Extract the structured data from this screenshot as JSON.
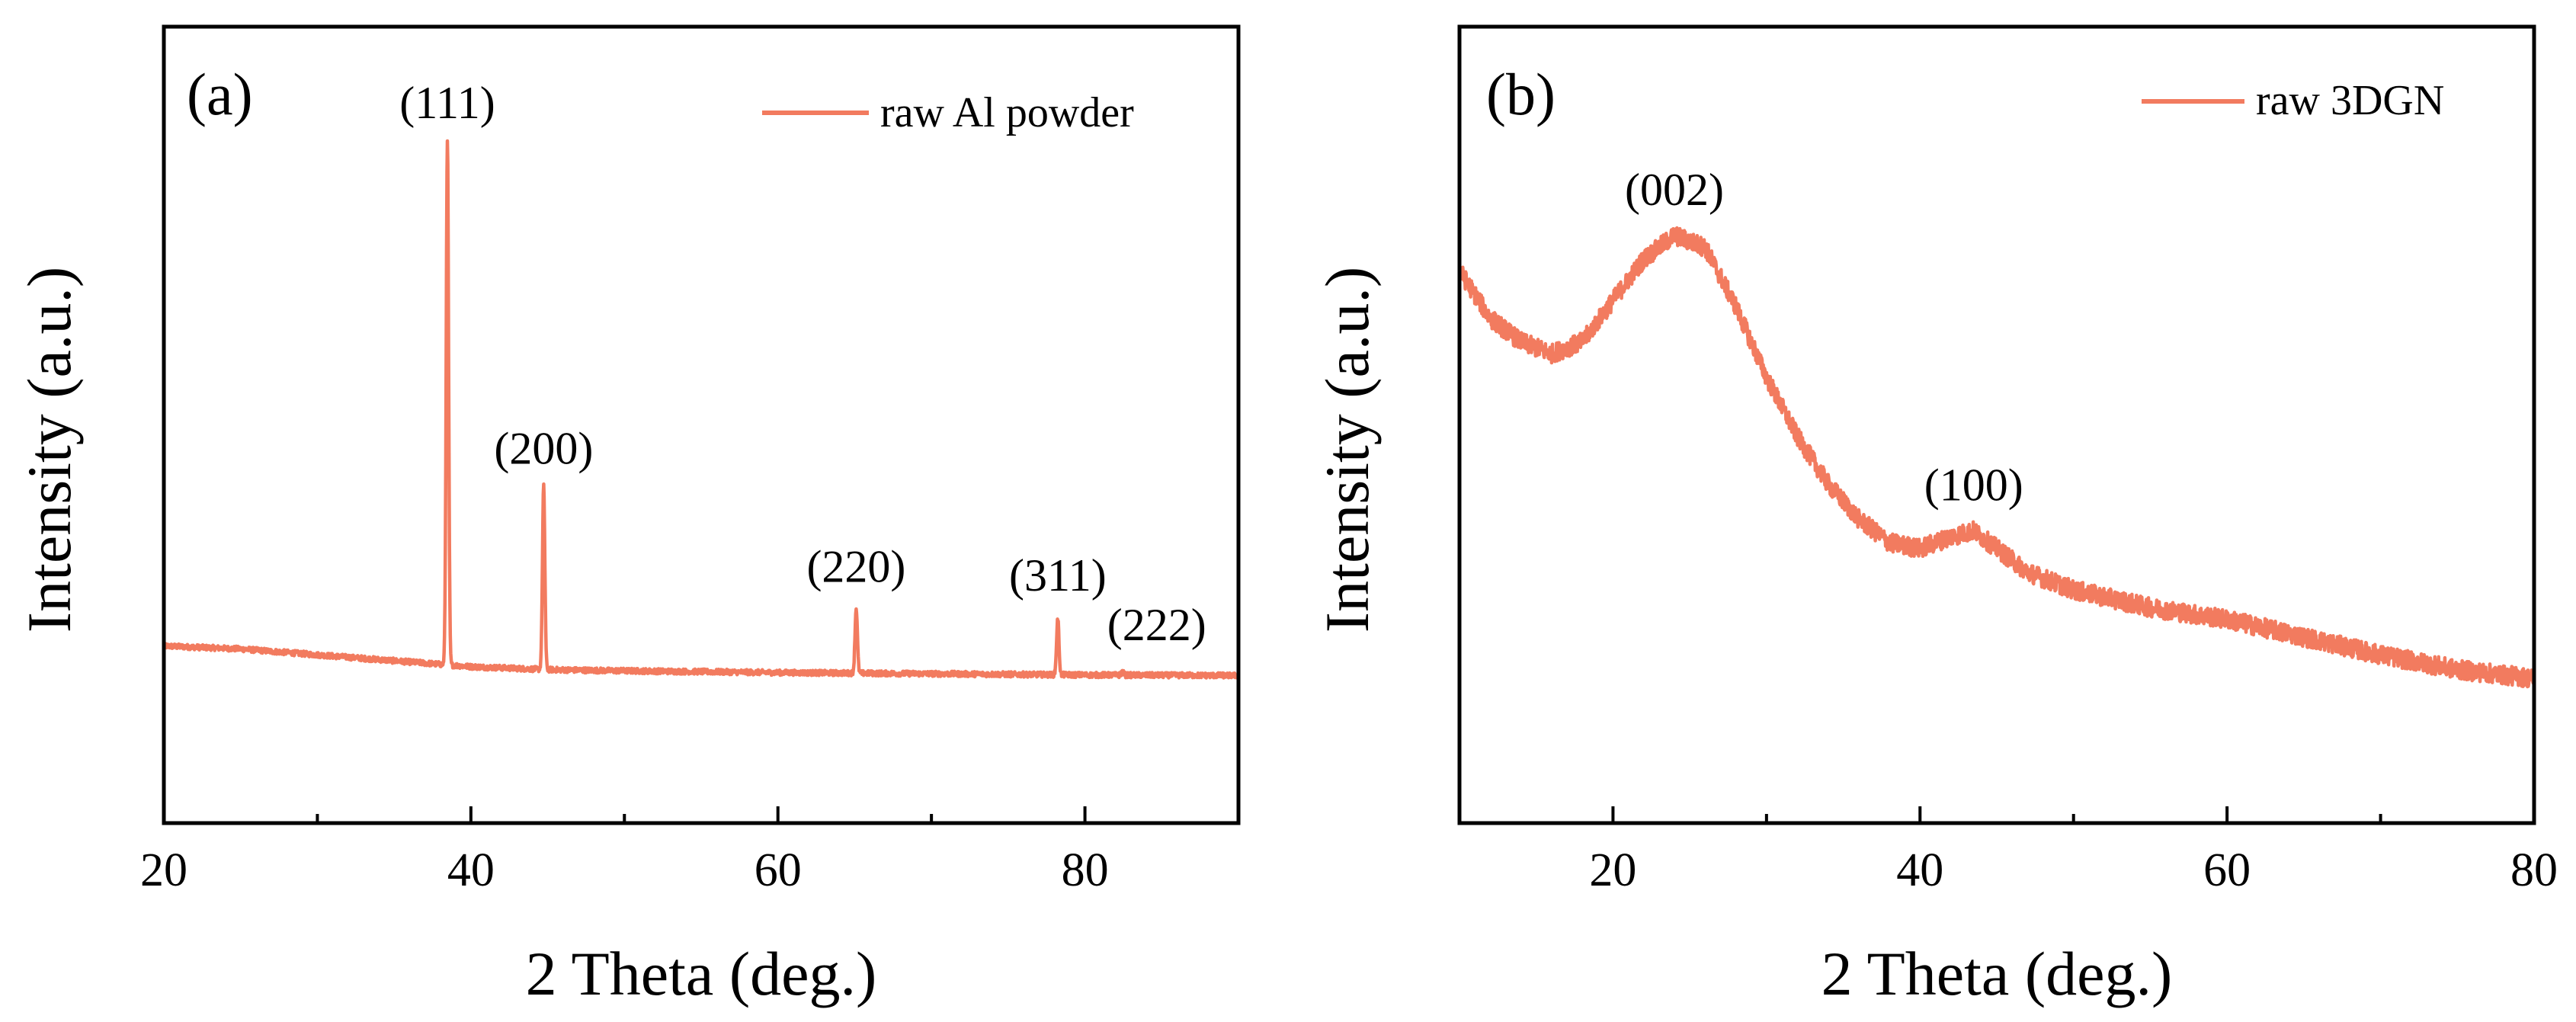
{
  "chart_data": [
    {
      "type": "line",
      "panel_label": "(a)",
      "xlabel": "2 Theta (deg.)",
      "ylabel": "Intensity (a.u.)",
      "xlim": [
        20,
        90
      ],
      "ylim": [
        0,
        100
      ],
      "x_ticks": [
        20,
        40,
        60,
        80
      ],
      "y_tick_labels": false,
      "legend": {
        "label": "raw Al powder",
        "placement": "top-right"
      },
      "series_color": "#F27B5F",
      "series": [
        {
          "name": "raw Al powder",
          "baseline": [
            [
              20,
              14.5
            ],
            [
              25,
              14.0
            ],
            [
              30,
              13.0
            ],
            [
              35,
              12.0
            ],
            [
              40,
              11.0
            ],
            [
              45,
              10.5
            ],
            [
              50,
              10.3
            ],
            [
              60,
              10.0
            ],
            [
              70,
              9.8
            ],
            [
              80,
              9.6
            ],
            [
              90,
              9.5
            ]
          ],
          "peaks": [
            {
              "x": 38.47,
              "height": 100,
              "label": "(111)"
            },
            {
              "x": 44.74,
              "height": 41.5,
              "label": "(200)"
            },
            {
              "x": 65.1,
              "height": 21.5,
              "label": "(220)"
            },
            {
              "x": 78.23,
              "height": 20.0,
              "label": "(311)"
            },
            {
              "x": 82.44,
              "height": 11.0,
              "label": "(222)"
            }
          ]
        }
      ]
    },
    {
      "type": "line",
      "panel_label": "(b)",
      "xlabel": "2 Theta (deg.)",
      "ylabel": "Intensity (a.u.)",
      "xlim": [
        10,
        80
      ],
      "ylim": [
        0,
        100
      ],
      "x_ticks": [
        20,
        40,
        60,
        80
      ],
      "y_tick_labels": false,
      "legend": {
        "label": "raw 3DGN",
        "placement": "top-right"
      },
      "series_color": "#F27B5F",
      "series": [
        {
          "name": "raw 3DGN",
          "points": [
            [
              10,
              78
            ],
            [
              12,
              70
            ],
            [
              14,
              66
            ],
            [
              16,
              64
            ],
            [
              18,
              66
            ],
            [
              20,
              73
            ],
            [
              22,
              80
            ],
            [
              24,
              84
            ],
            [
              26,
              82
            ],
            [
              28,
              72
            ],
            [
              30,
              60
            ],
            [
              32,
              50
            ],
            [
              34,
              42
            ],
            [
              36,
              36
            ],
            [
              38,
              32
            ],
            [
              40,
              31
            ],
            [
              42,
              33
            ],
            [
              43.5,
              34
            ],
            [
              45,
              31
            ],
            [
              47,
              27
            ],
            [
              50,
              24
            ],
            [
              55,
              21
            ],
            [
              60,
              19
            ],
            [
              65,
              16
            ],
            [
              70,
              13
            ],
            [
              75,
              10.5
            ],
            [
              80,
              9
            ]
          ],
          "peaks": [
            {
              "x": 24,
              "height": 84,
              "label": "(002)"
            },
            {
              "x": 43.5,
              "height": 34,
              "label": "(100)"
            }
          ]
        }
      ]
    }
  ]
}
